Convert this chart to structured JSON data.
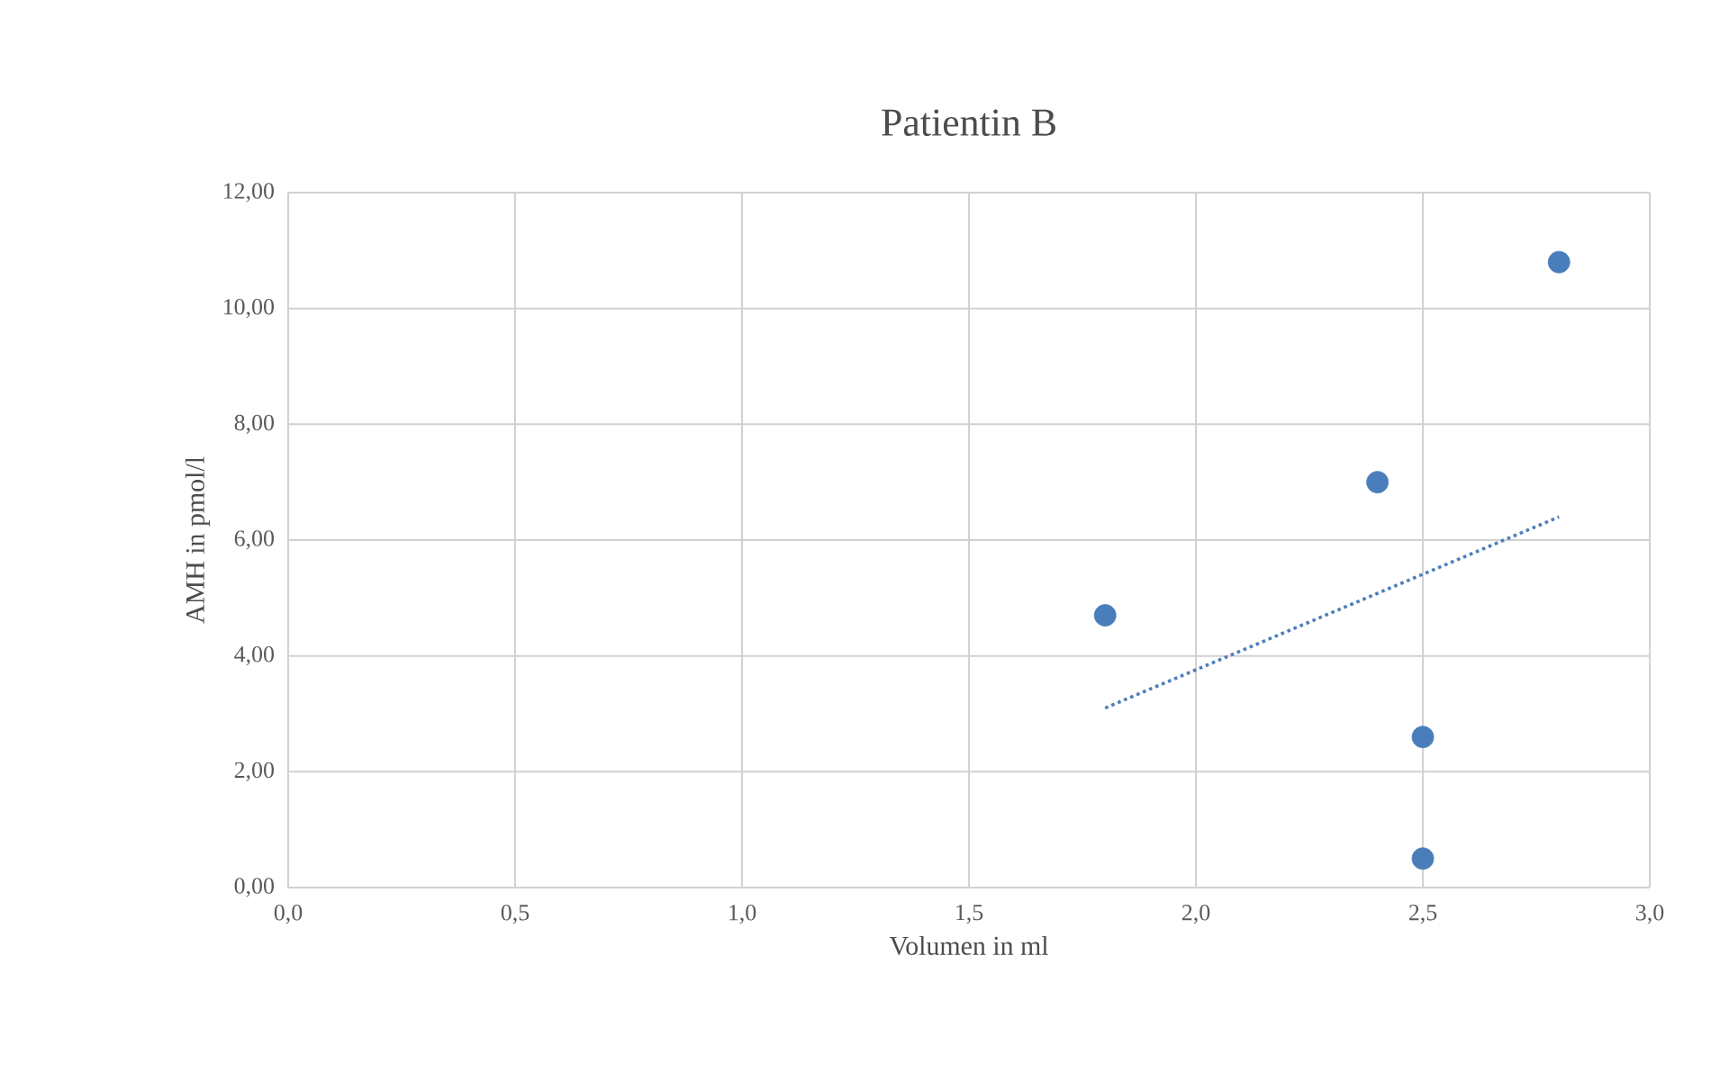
{
  "chart_data": {
    "type": "scatter",
    "title": "Patientin B",
    "xlabel": "Volumen in ml",
    "ylabel": "AMH in pmol/l",
    "series": [
      {
        "color": "#4a7ebb",
        "x": [
          1.8,
          2.4,
          2.5,
          2.5,
          2.8
        ],
        "values": [
          4.7,
          7.0,
          2.6,
          0.5,
          10.8
        ],
        "marker": "circle"
      },
      {
        "type": "line",
        "color": "#4a7ebb",
        "x": [
          1.8,
          2.8
        ],
        "values": [
          3.1,
          6.4
        ],
        "line_style": "dotted",
        "marker": "none"
      }
    ],
    "xlim": [
      0,
      3
    ],
    "ylim": [
      0,
      12
    ],
    "xticks": [
      {
        "value": 0,
        "label": "0,0"
      },
      {
        "value": 0.5,
        "label": "0,5"
      },
      {
        "value": 1,
        "label": "1,0"
      },
      {
        "value": 1.5,
        "label": "1,5"
      },
      {
        "value": 2,
        "label": "2,0"
      },
      {
        "value": 2.5,
        "label": "2,5"
      },
      {
        "value": 3,
        "label": "3,0"
      }
    ],
    "yticks": [
      {
        "value": 0,
        "label": "0,00"
      },
      {
        "value": 2,
        "label": "2,00"
      },
      {
        "value": 4,
        "label": "4,00"
      },
      {
        "value": 6,
        "label": "6,00"
      },
      {
        "value": 8,
        "label": "8,00"
      },
      {
        "value": 10,
        "label": "10,00"
      },
      {
        "value": 12,
        "label": "12,00"
      }
    ],
    "grid": true
  }
}
